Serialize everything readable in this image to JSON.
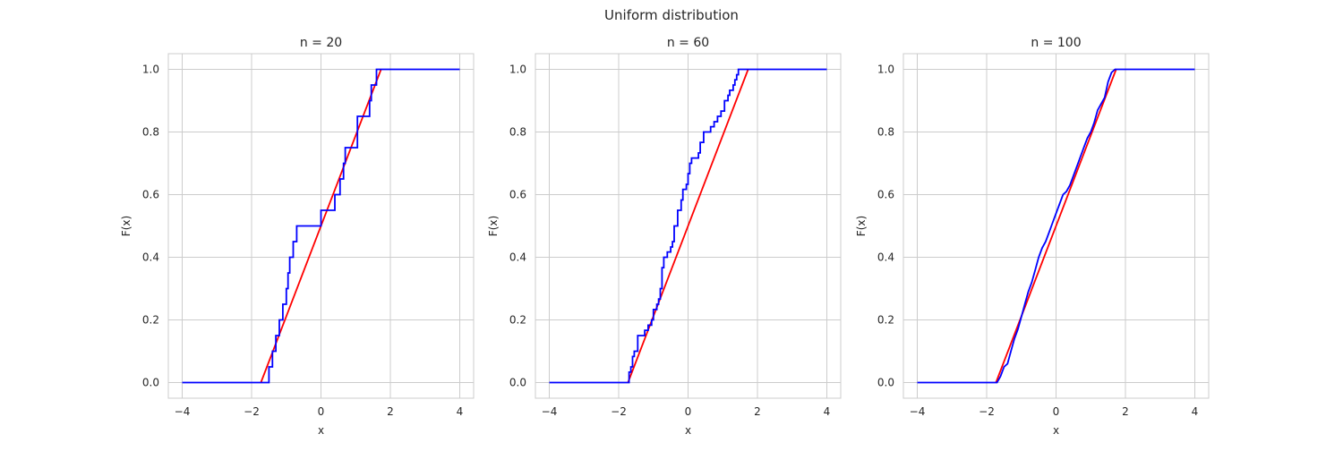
{
  "figure": {
    "title": "Uniform distribution"
  },
  "chart_data": [
    {
      "type": "line",
      "title": "n = 20",
      "xlabel": "x",
      "ylabel": "F(x)",
      "xlim": [
        -4.4,
        4.4
      ],
      "ylim": [
        -0.05,
        1.05
      ],
      "xticks": [
        -4,
        -2,
        0,
        2,
        4
      ],
      "yticks": [
        0.0,
        0.2,
        0.4,
        0.6,
        0.8,
        1.0
      ],
      "grid": true,
      "colors": {
        "ecdf": "#0000ff",
        "cdf": "#ff0000",
        "grid": "#cccccc",
        "frame": "#cccccc"
      },
      "series": [
        {
          "kind": "cdf",
          "x": [
            -1.732,
            1.732
          ],
          "y": [
            0.0,
            1.0
          ]
        },
        {
          "kind": "ecdf",
          "x": [
            -4.0,
            -1.5,
            -1.5,
            -1.4,
            -1.4,
            -1.3,
            -1.3,
            -1.2,
            -1.2,
            -1.1,
            -1.1,
            -1.0,
            -1.0,
            -0.95,
            -0.95,
            -0.9,
            -0.9,
            -0.8,
            -0.8,
            -0.7,
            -0.7,
            -0.6,
            -0.6,
            0.0,
            0.0,
            0.4,
            0.4,
            0.55,
            0.55,
            0.65,
            0.65,
            0.7,
            0.7,
            1.05,
            1.05,
            1.4,
            1.4,
            1.45,
            1.45,
            1.5,
            1.5,
            1.6,
            1.6,
            4.0
          ],
          "y": [
            0.0,
            0.0,
            0.05,
            0.05,
            0.1,
            0.1,
            0.15,
            0.15,
            0.2,
            0.2,
            0.25,
            0.25,
            0.3,
            0.3,
            0.35,
            0.35,
            0.4,
            0.4,
            0.45,
            0.45,
            0.5,
            0.5,
            0.5,
            0.5,
            0.55,
            0.55,
            0.6,
            0.6,
            0.65,
            0.65,
            0.7,
            0.7,
            0.75,
            0.75,
            0.85,
            0.85,
            0.9,
            0.9,
            0.95,
            0.95,
            0.95,
            0.95,
            1.0,
            1.0
          ]
        }
      ]
    },
    {
      "type": "line",
      "title": "n = 60",
      "xlabel": "x",
      "ylabel": "F(x)",
      "xlim": [
        -4.4,
        4.4
      ],
      "ylim": [
        -0.05,
        1.05
      ],
      "xticks": [
        -4,
        -2,
        0,
        2,
        4
      ],
      "yticks": [
        0.0,
        0.2,
        0.4,
        0.6,
        0.8,
        1.0
      ],
      "grid": true,
      "colors": {
        "ecdf": "#0000ff",
        "cdf": "#ff0000",
        "grid": "#cccccc",
        "frame": "#cccccc"
      },
      "series": [
        {
          "kind": "cdf",
          "x": [
            -1.732,
            1.732
          ],
          "y": [
            0.0,
            1.0
          ]
        },
        {
          "kind": "ecdf",
          "x": [
            -4.0,
            -1.7,
            -1.7,
            -1.65,
            -1.65,
            -1.6,
            -1.6,
            -1.55,
            -1.55,
            -1.45,
            -1.45,
            -1.25,
            -1.25,
            -1.15,
            -1.15,
            -1.05,
            -1.05,
            -1.0,
            -1.0,
            -0.9,
            -0.9,
            -0.85,
            -0.85,
            -0.8,
            -0.8,
            -0.75,
            -0.75,
            -0.7,
            -0.7,
            -0.6,
            -0.6,
            -0.5,
            -0.5,
            -0.45,
            -0.45,
            -0.4,
            -0.4,
            -0.3,
            -0.3,
            -0.2,
            -0.2,
            -0.15,
            -0.15,
            -0.05,
            -0.05,
            0.0,
            0.0,
            0.05,
            0.05,
            0.1,
            0.1,
            0.2,
            0.2,
            0.3,
            0.3,
            0.35,
            0.35,
            0.45,
            0.45,
            0.55,
            0.55,
            0.65,
            0.65,
            0.75,
            0.75,
            0.85,
            0.85,
            0.95,
            0.95,
            1.05,
            1.05,
            1.15,
            1.15,
            1.2,
            1.2,
            1.3,
            1.3,
            1.35,
            1.35,
            1.4,
            1.4,
            1.45,
            1.45,
            1.5,
            1.5,
            1.55,
            1.55,
            4.0
          ],
          "y": [
            0.0,
            0.0,
            0.033,
            0.033,
            0.05,
            0.05,
            0.083,
            0.083,
            0.1,
            0.1,
            0.15,
            0.15,
            0.167,
            0.167,
            0.183,
            0.183,
            0.2,
            0.2,
            0.233,
            0.233,
            0.25,
            0.25,
            0.267,
            0.267,
            0.3,
            0.3,
            0.367,
            0.367,
            0.4,
            0.4,
            0.417,
            0.417,
            0.433,
            0.433,
            0.45,
            0.45,
            0.5,
            0.5,
            0.55,
            0.55,
            0.583,
            0.583,
            0.617,
            0.617,
            0.633,
            0.633,
            0.667,
            0.667,
            0.7,
            0.7,
            0.717,
            0.717,
            0.717,
            0.717,
            0.733,
            0.733,
            0.767,
            0.767,
            0.8,
            0.8,
            0.8,
            0.8,
            0.817,
            0.817,
            0.833,
            0.833,
            0.85,
            0.85,
            0.867,
            0.867,
            0.9,
            0.9,
            0.917,
            0.917,
            0.933,
            0.933,
            0.95,
            0.95,
            0.967,
            0.967,
            0.983,
            0.983,
            1.0,
            1.0,
            1.0,
            1.0,
            1.0,
            1.0
          ]
        }
      ]
    },
    {
      "type": "line",
      "title": "n = 100",
      "xlabel": "x",
      "ylabel": "F(x)",
      "xlim": [
        -4.4,
        4.4
      ],
      "ylim": [
        -0.05,
        1.05
      ],
      "xticks": [
        -4,
        -2,
        0,
        2,
        4
      ],
      "yticks": [
        0.0,
        0.2,
        0.4,
        0.6,
        0.8,
        1.0
      ],
      "grid": true,
      "colors": {
        "ecdf": "#0000ff",
        "cdf": "#ff0000",
        "grid": "#cccccc",
        "frame": "#cccccc"
      },
      "series": [
        {
          "kind": "cdf",
          "x": [
            -1.732,
            1.732
          ],
          "y": [
            0.0,
            1.0
          ]
        },
        {
          "kind": "ecdf",
          "x": [
            -4.0,
            -1.7,
            -1.6,
            -1.5,
            -1.4,
            -1.3,
            -1.2,
            -1.1,
            -1.0,
            -0.9,
            -0.8,
            -0.7,
            -0.6,
            -0.5,
            -0.4,
            -0.3,
            -0.2,
            -0.1,
            0.0,
            0.1,
            0.2,
            0.3,
            0.4,
            0.5,
            0.6,
            0.7,
            0.8,
            0.9,
            1.0,
            1.1,
            1.2,
            1.3,
            1.4,
            1.5,
            1.6,
            1.7,
            4.0
          ],
          "y": [
            0.0,
            0.0,
            0.02,
            0.05,
            0.06,
            0.1,
            0.14,
            0.17,
            0.21,
            0.25,
            0.29,
            0.32,
            0.36,
            0.4,
            0.43,
            0.45,
            0.48,
            0.51,
            0.54,
            0.57,
            0.6,
            0.61,
            0.63,
            0.66,
            0.69,
            0.72,
            0.75,
            0.78,
            0.8,
            0.83,
            0.87,
            0.89,
            0.91,
            0.96,
            0.99,
            1.0,
            1.0
          ]
        }
      ]
    }
  ]
}
